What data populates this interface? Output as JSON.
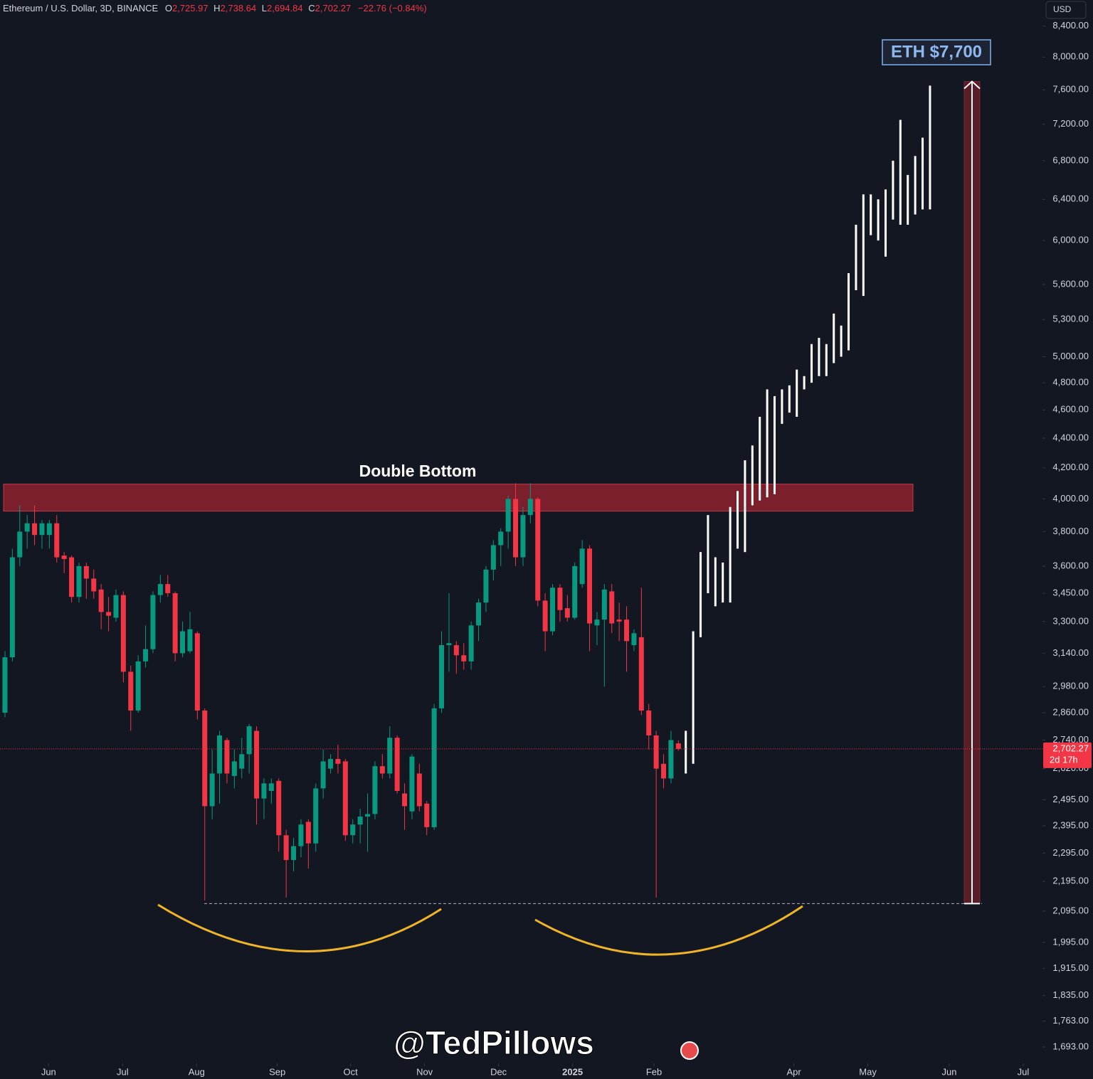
{
  "chart_data": {
    "type": "candlestick",
    "header": {
      "symbol": "Ethereum / U.S. Dollar, 3D, BINANCE",
      "fields": [
        {
          "key": "O",
          "text": "2,725.97"
        },
        {
          "key": "H",
          "text": "2,738.64"
        },
        {
          "key": "L",
          "text": "2,694.84"
        },
        {
          "key": "C",
          "text": "2,702.27"
        }
      ],
      "change": "−22.76 (−0.84%)"
    },
    "currency": "USD",
    "up_color": "#089981",
    "down_color": "#f23645",
    "projection_color": "#ffffff",
    "log_scale": true,
    "grid": false,
    "ylim": [
      1650,
      8750
    ],
    "yticks": [
      {
        "value": 8400,
        "label": "8,400.00"
      },
      {
        "value": 8000,
        "label": "8,000.00"
      },
      {
        "value": 7600,
        "label": "7,600.00"
      },
      {
        "value": 7200,
        "label": "7,200.00"
      },
      {
        "value": 6800,
        "label": "6,800.00"
      },
      {
        "value": 6400,
        "label": "6,400.00"
      },
      {
        "value": 6000,
        "label": "6,000.00"
      },
      {
        "value": 5600,
        "label": "5,600.00"
      },
      {
        "value": 5300,
        "label": "5,300.00"
      },
      {
        "value": 5000,
        "label": "5,000.00"
      },
      {
        "value": 4800,
        "label": "4,800.00"
      },
      {
        "value": 4600,
        "label": "4,600.00"
      },
      {
        "value": 4400,
        "label": "4,400.00"
      },
      {
        "value": 4200,
        "label": "4,200.00"
      },
      {
        "value": 4000,
        "label": "4,000.00"
      },
      {
        "value": 3800,
        "label": "3,800.00"
      },
      {
        "value": 3600,
        "label": "3,600.00"
      },
      {
        "value": 3450,
        "label": "3,450.00"
      },
      {
        "value": 3300,
        "label": "3,300.00"
      },
      {
        "value": 3140,
        "label": "3,140.00"
      },
      {
        "value": 2980,
        "label": "2,980.00"
      },
      {
        "value": 2860,
        "label": "2,860.00"
      },
      {
        "value": 2740,
        "label": "2,740.00"
      },
      {
        "value": 2620,
        "label": "2,620.00"
      },
      {
        "value": 2495,
        "label": "2,495.00"
      },
      {
        "value": 2395,
        "label": "2,395.00"
      },
      {
        "value": 2295,
        "label": "2,295.00"
      },
      {
        "value": 2195,
        "label": "2,195.00"
      },
      {
        "value": 2095,
        "label": "2,095.00"
      },
      {
        "value": 1995,
        "label": "1,995.00"
      },
      {
        "value": 1915,
        "label": "1,915.00"
      },
      {
        "value": 1835,
        "label": "1,835.00"
      },
      {
        "value": 1763,
        "label": "1,763.00"
      },
      {
        "value": 1693,
        "label": "1,693.00"
      }
    ],
    "xlim": [
      -0.67,
      140.2
    ],
    "xticks": [
      {
        "value": 5.9,
        "label": "Jun"
      },
      {
        "value": 15.9,
        "label": "Jul"
      },
      {
        "value": 25.9,
        "label": "Aug"
      },
      {
        "value": 36.8,
        "label": "Sep"
      },
      {
        "value": 46.7,
        "label": "Oct"
      },
      {
        "value": 56.7,
        "label": "Nov"
      },
      {
        "value": 66.7,
        "label": "Dec"
      },
      {
        "value": 76.7,
        "label": "2025"
      },
      {
        "value": 87.7,
        "label": "Feb"
      },
      {
        "value": 106.6,
        "label": "Apr"
      },
      {
        "value": 116.6,
        "label": "May"
      },
      {
        "value": 127.6,
        "label": "Jun"
      },
      {
        "value": 137.6,
        "label": "Jul"
      }
    ],
    "ohlc": [
      [
        2860,
        3150,
        2840,
        3120
      ],
      [
        3120,
        3700,
        3100,
        3650
      ],
      [
        3650,
        3960,
        3600,
        3800
      ],
      [
        3800,
        3900,
        3700,
        3850
      ],
      [
        3850,
        3960,
        3720,
        3780
      ],
      [
        3780,
        3870,
        3700,
        3850
      ],
      [
        3780,
        3870,
        3700,
        3850
      ],
      [
        3850,
        3900,
        3620,
        3650
      ],
      [
        3660,
        3680,
        3560,
        3640
      ],
      [
        3650,
        3660,
        3400,
        3430
      ],
      [
        3430,
        3620,
        3400,
        3600
      ],
      [
        3600,
        3620,
        3420,
        3530
      ],
      [
        3530,
        3580,
        3420,
        3460
      ],
      [
        3470,
        3500,
        3260,
        3350
      ],
      [
        3350,
        3430,
        3250,
        3330
      ],
      [
        3320,
        3470,
        3300,
        3440
      ],
      [
        3440,
        3460,
        3000,
        3050
      ],
      [
        3050,
        3080,
        2780,
        2870
      ],
      [
        2870,
        3130,
        2860,
        3100
      ],
      [
        3100,
        3280,
        3070,
        3160
      ],
      [
        3160,
        3460,
        3140,
        3440
      ],
      [
        3440,
        3550,
        3400,
        3500
      ],
      [
        3500,
        3550,
        3430,
        3450
      ],
      [
        3450,
        3460,
        3100,
        3140
      ],
      [
        3140,
        3300,
        3120,
        3250
      ],
      [
        3150,
        3350,
        3140,
        3260
      ],
      [
        3240,
        3250,
        2830,
        2870
      ],
      [
        2870,
        2880,
        2130,
        2470
      ],
      [
        2470,
        2700,
        2420,
        2600
      ],
      [
        2600,
        2780,
        2480,
        2760
      ],
      [
        2740,
        2750,
        2560,
        2600
      ],
      [
        2590,
        2700,
        2540,
        2650
      ],
      [
        2620,
        2750,
        2580,
        2680
      ],
      [
        2680,
        2810,
        2600,
        2800
      ],
      [
        2780,
        2800,
        2400,
        2500
      ],
      [
        2500,
        2580,
        2420,
        2560
      ],
      [
        2530,
        2580,
        2480,
        2560
      ],
      [
        2570,
        2580,
        2300,
        2360
      ],
      [
        2360,
        2380,
        2140,
        2270
      ],
      [
        2270,
        2350,
        2230,
        2320
      ],
      [
        2320,
        2420,
        2280,
        2400
      ],
      [
        2410,
        2420,
        2240,
        2330
      ],
      [
        2330,
        2560,
        2300,
        2540
      ],
      [
        2540,
        2700,
        2500,
        2650
      ],
      [
        2620,
        2680,
        2600,
        2660
      ],
      [
        2660,
        2720,
        2600,
        2640
      ],
      [
        2650,
        2660,
        2340,
        2360
      ],
      [
        2360,
        2420,
        2330,
        2400
      ],
      [
        2400,
        2460,
        2330,
        2430
      ],
      [
        2430,
        2520,
        2300,
        2440
      ],
      [
        2440,
        2650,
        2420,
        2630
      ],
      [
        2630,
        2680,
        2580,
        2600
      ],
      [
        2600,
        2800,
        2580,
        2750
      ],
      [
        2750,
        2760,
        2520,
        2530
      ],
      [
        2520,
        2560,
        2380,
        2470
      ],
      [
        2450,
        2680,
        2420,
        2670
      ],
      [
        2600,
        2640,
        2450,
        2470
      ],
      [
        2480,
        2490,
        2360,
        2390
      ],
      [
        2390,
        2900,
        2380,
        2880
      ],
      [
        2880,
        3250,
        2860,
        3180
      ],
      [
        3180,
        3450,
        3050,
        3190
      ],
      [
        3180,
        3200,
        3040,
        3130
      ],
      [
        3130,
        3190,
        3060,
        3100
      ],
      [
        3100,
        3300,
        3060,
        3280
      ],
      [
        3280,
        3420,
        3200,
        3400
      ],
      [
        3400,
        3600,
        3350,
        3580
      ],
      [
        3580,
        3750,
        3520,
        3720
      ],
      [
        3720,
        3820,
        3600,
        3800
      ],
      [
        3800,
        4020,
        3700,
        4000
      ],
      [
        4000,
        4100,
        3600,
        3650
      ],
      [
        3650,
        3950,
        3600,
        3900
      ],
      [
        3900,
        4100,
        3850,
        4000
      ],
      [
        4000,
        4010,
        3380,
        3410
      ],
      [
        3410,
        3450,
        3150,
        3250
      ],
      [
        3250,
        3500,
        3230,
        3480
      ],
      [
        3480,
        3500,
        3300,
        3360
      ],
      [
        3370,
        3440,
        3300,
        3320
      ],
      [
        3320,
        3620,
        3310,
        3600
      ],
      [
        3500,
        3750,
        3480,
        3700
      ],
      [
        3700,
        3720,
        3150,
        3290
      ],
      [
        3280,
        3350,
        3180,
        3310
      ],
      [
        3310,
        3500,
        2980,
        3470
      ],
      [
        3460,
        3500,
        3240,
        3290
      ],
      [
        3310,
        3400,
        3200,
        3300
      ],
      [
        3310,
        3380,
        3050,
        3200
      ],
      [
        3180,
        3260,
        3150,
        3240
      ],
      [
        3220,
        3480,
        2850,
        2870
      ],
      [
        2870,
        2900,
        2700,
        2760
      ],
      [
        2760,
        2780,
        2140,
        2620
      ],
      [
        2640,
        2680,
        2540,
        2580
      ],
      [
        2580,
        2780,
        2560,
        2740
      ],
      [
        2725.97,
        2738.64,
        2694.84,
        2702.27
      ]
    ],
    "projection": [
      [
        2600,
        2780
      ],
      [
        2640,
        3250
      ],
      [
        3220,
        3680
      ],
      [
        3450,
        3900
      ],
      [
        3380,
        3650
      ],
      [
        3400,
        3620
      ],
      [
        3400,
        3950
      ],
      [
        3700,
        4050
      ],
      [
        3680,
        4250
      ],
      [
        3960,
        4350
      ],
      [
        3990,
        4550
      ],
      [
        4010,
        4750
      ],
      [
        4030,
        4700
      ],
      [
        4500,
        4750
      ],
      [
        4580,
        4780
      ],
      [
        4550,
        4900
      ],
      [
        4750,
        4850
      ],
      [
        4800,
        5100
      ],
      [
        4850,
        5150
      ],
      [
        4850,
        5100
      ],
      [
        4950,
        5350
      ],
      [
        5000,
        5250
      ],
      [
        5050,
        5700
      ],
      [
        5550,
        6150
      ],
      [
        5500,
        6450
      ],
      [
        6050,
        6450
      ],
      [
        6000,
        6400
      ],
      [
        5850,
        6500
      ],
      [
        6200,
        6800
      ],
      [
        6150,
        7250
      ],
      [
        6150,
        6650
      ],
      [
        6250,
        6850
      ],
      [
        6300,
        7050
      ],
      [
        6300,
        7650
      ]
    ],
    "zone": {
      "label": "Double Bottom",
      "from": 3924,
      "to": 4094
    },
    "support": 2120,
    "target": {
      "value": 7700,
      "label": "ETH $7,700"
    },
    "price_tag": {
      "price": "2,702.27",
      "countdown": "2d 17h"
    },
    "watermark": "@TedPillows"
  }
}
